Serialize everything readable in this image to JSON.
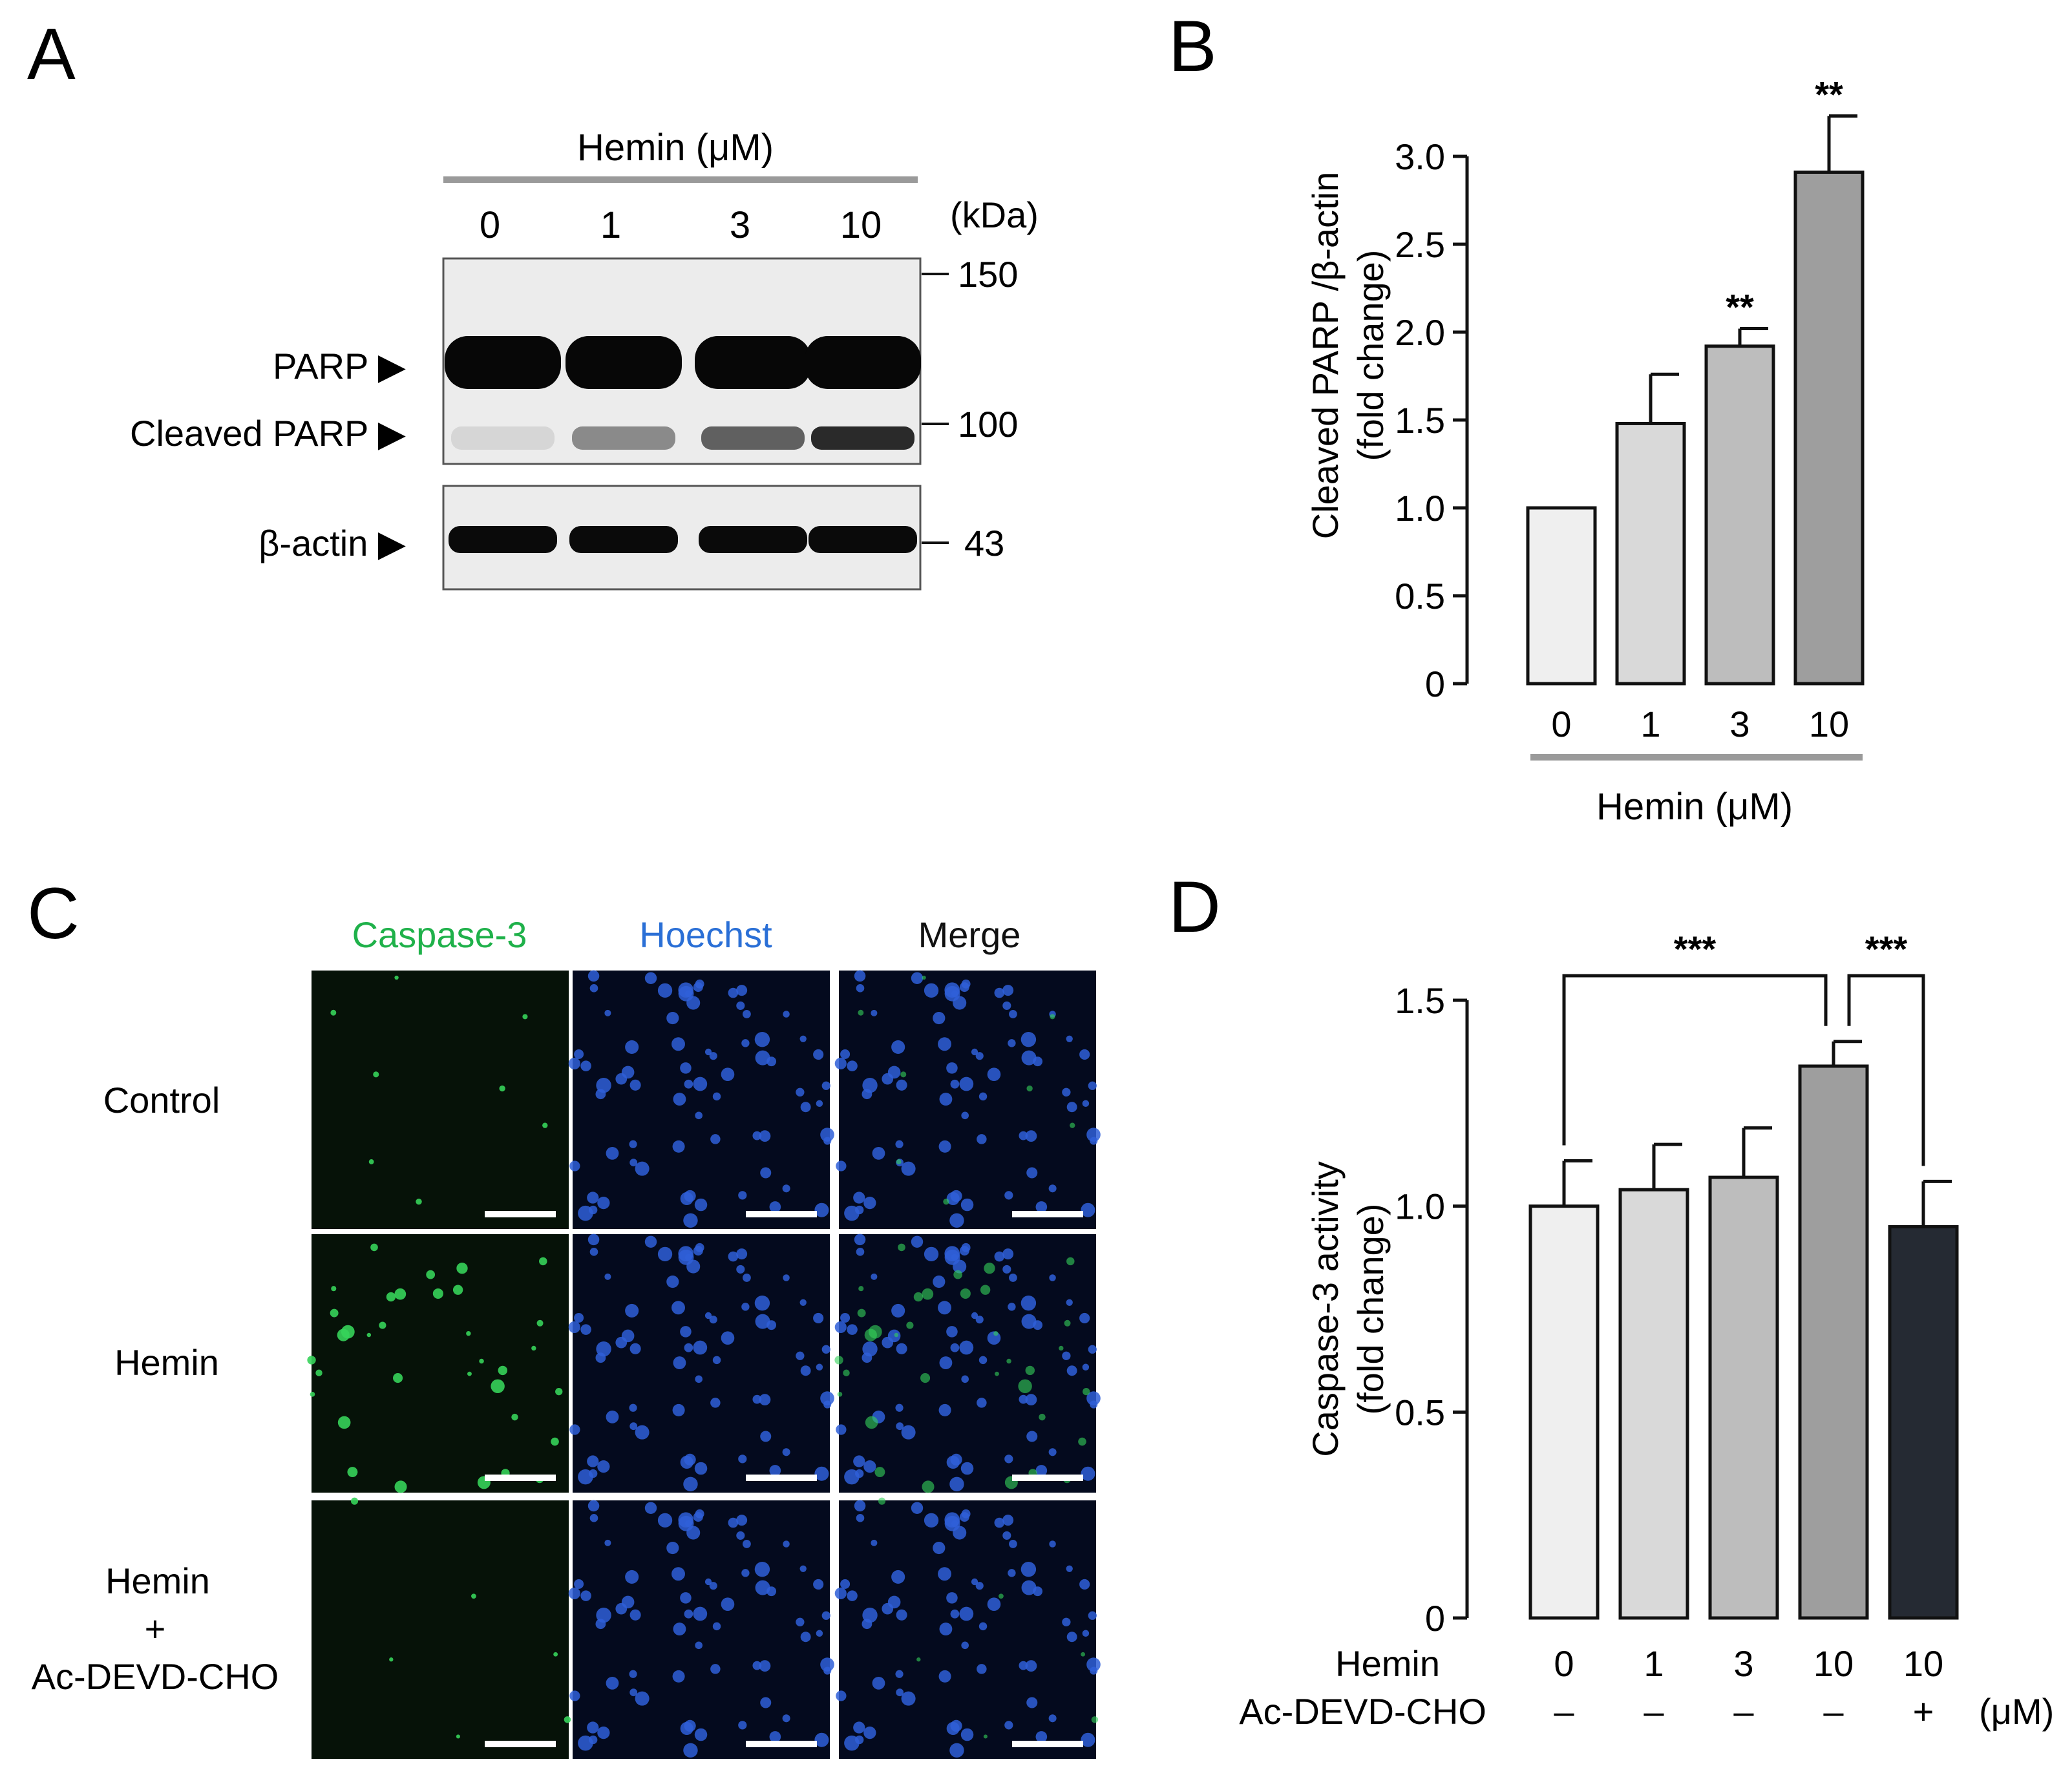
{
  "panels": {
    "a": {
      "letter": "A",
      "group_label": "Hemin (μM)",
      "lane_labels": [
        "0",
        "1",
        "3",
        "10"
      ],
      "unit_label": "(kDa)",
      "row_labels": [
        "PARP ▶",
        "Cleaved PARP ▶",
        "β-actin ▶"
      ],
      "markers": [
        "150",
        "100",
        "43"
      ],
      "band_levels": {
        "parp": [
          1.0,
          1.0,
          1.0,
          1.0
        ],
        "cleaved_parp": [
          0.1,
          0.45,
          0.65,
          0.9
        ],
        "beta_actin": [
          1.0,
          1.0,
          1.0,
          1.0
        ]
      }
    },
    "b": {
      "letter": "B"
    },
    "c": {
      "letter": "C",
      "channels": [
        "Caspase-3",
        "Hoechst",
        "Merge"
      ],
      "channel_colors": [
        "#1fb14a",
        "#2a6fd6",
        "#111111"
      ],
      "row_labels": [
        "Control",
        "Hemin",
        "Hemin",
        "+",
        "Ac-DEVD-CHO"
      ]
    },
    "d": {
      "letter": "D",
      "row_names": [
        "Hemin",
        "Ac-DEVD-CHO"
      ],
      "unit": "(μM)"
    }
  },
  "chart_data": [
    {
      "type": "bar",
      "panel": "B",
      "categories": [
        "0",
        "1",
        "3",
        "10"
      ],
      "values": [
        1.0,
        1.48,
        1.92,
        2.91
      ],
      "errors": [
        0.0,
        0.28,
        0.1,
        0.32
      ],
      "significance": [
        "",
        "",
        "**",
        "**"
      ],
      "bar_colors": [
        "#efefef",
        "#d9d9d9",
        "#bdbdbd",
        "#9e9e9e"
      ],
      "ylabel": [
        "Cleaved PARP /β-actin",
        "(fold change)"
      ],
      "xlabel": "Hemin (μM)",
      "ylim": [
        0,
        3.0
      ],
      "yticks": [
        "0",
        "0.5",
        "1.0",
        "1.5",
        "2.0",
        "2.5",
        "3.0"
      ]
    },
    {
      "type": "bar",
      "panel": "D",
      "categories": [
        "0",
        "1",
        "3",
        "10",
        "10"
      ],
      "treatment": [
        "–",
        "–",
        "–",
        "–",
        "+"
      ],
      "values": [
        1.0,
        1.04,
        1.07,
        1.34,
        0.95
      ],
      "errors": [
        0.11,
        0.11,
        0.12,
        0.06,
        0.11
      ],
      "bar_colors": [
        "#efefef",
        "#d9d9d9",
        "#bdbdbd",
        "#9e9e9e",
        "#252a33"
      ],
      "comparisons": [
        {
          "from": 0,
          "to": 3,
          "label": "***"
        },
        {
          "from": 3,
          "to": 4,
          "label": "***"
        }
      ],
      "ylabel": [
        "Caspase-3 activity",
        "(fold change)"
      ],
      "ylim": [
        0,
        1.5
      ],
      "yticks": [
        "0",
        "0.5",
        "1.0",
        "1.5"
      ]
    }
  ]
}
